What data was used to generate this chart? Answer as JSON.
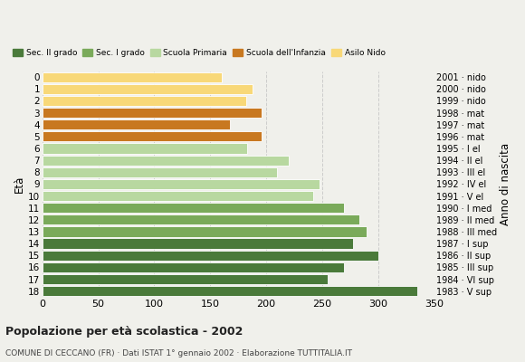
{
  "ages": [
    18,
    17,
    16,
    15,
    14,
    13,
    12,
    11,
    10,
    9,
    8,
    7,
    6,
    5,
    4,
    3,
    2,
    1,
    0
  ],
  "values": [
    335,
    255,
    270,
    300,
    278,
    290,
    283,
    270,
    242,
    248,
    210,
    220,
    183,
    196,
    168,
    196,
    182,
    188,
    160
  ],
  "right_labels": [
    "1983 · V sup",
    "1984 · VI sup",
    "1985 · III sup",
    "1986 · II sup",
    "1987 · I sup",
    "1988 · III med",
    "1989 · II med",
    "1990 · I med",
    "1991 · V el",
    "1992 · IV el",
    "1993 · III el",
    "1994 · II el",
    "1995 · I el",
    "1996 · mat",
    "1997 · mat",
    "1998 · mat",
    "1999 · nido",
    "2000 · nido",
    "2001 · nido"
  ],
  "bar_colors": [
    "#4a7a3a",
    "#4a7a3a",
    "#4a7a3a",
    "#4a7a3a",
    "#4a7a3a",
    "#7aaa5a",
    "#7aaa5a",
    "#7aaa5a",
    "#b8d8a0",
    "#b8d8a0",
    "#b8d8a0",
    "#b8d8a0",
    "#b8d8a0",
    "#c87820",
    "#c87820",
    "#c87820",
    "#f8d878",
    "#f8d878",
    "#f8d878"
  ],
  "legend_labels": [
    "Sec. II grado",
    "Sec. I grado",
    "Scuola Primaria",
    "Scuola dell'Infanzia",
    "Asilo Nido"
  ],
  "legend_colors": [
    "#4a7a3a",
    "#7aaa5a",
    "#b8d8a0",
    "#c87820",
    "#f8d878"
  ],
  "title1": "Popolazione per età scolastica - 2002",
  "title2": "COMUNE DI CECCANO (FR) · Dati ISTAT 1° gennaio 2002 · Elaborazione TUTTITALIA.IT",
  "ylabel_left": "Età",
  "ylabel_right": "Anno di nascita",
  "xlim": [
    0,
    350
  ],
  "xticks": [
    0,
    50,
    100,
    150,
    200,
    250,
    300,
    350
  ],
  "bg_color": "#f0f0eb",
  "grid_color": "#cccccc"
}
